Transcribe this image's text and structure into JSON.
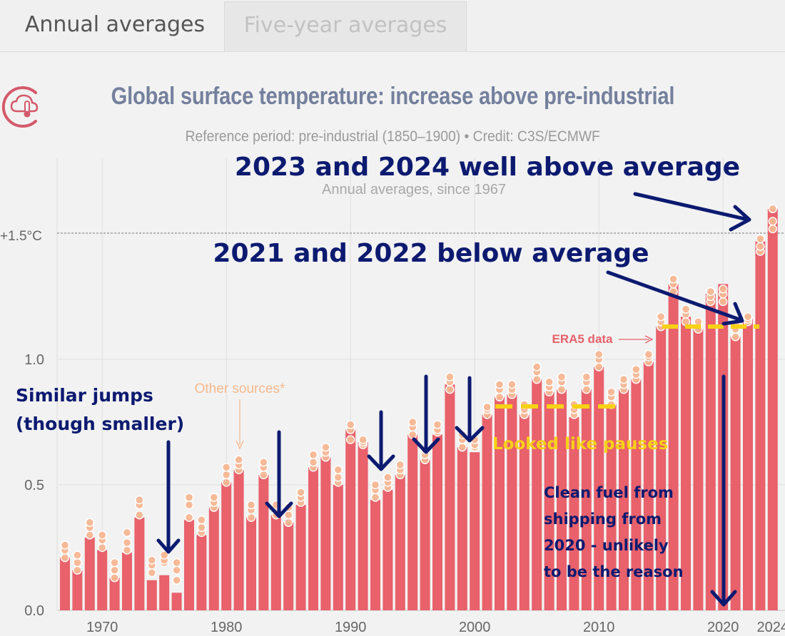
{
  "tabs": [
    {
      "label": "Annual averages"
    },
    {
      "label": "Five-year averages"
    }
  ],
  "colors": {
    "bar": "#e8616b",
    "dot": "#f8b894",
    "annotation": "#0c1a70",
    "highlight": "#f7d117"
  },
  "chart_data": {
    "type": "bar",
    "title": "Global surface temperature: increase above pre-industrial",
    "subtitle": "Reference period: pre-industrial (1850–1900) • Credit: C3S/ECMWF",
    "note": "Annual averages, since 1967",
    "reference_line": {
      "value": 1.5,
      "label": "+1.5°C"
    },
    "ylim": [
      0,
      1.8
    ],
    "yticks": [
      {
        "value": 0,
        "label": "0.0"
      },
      {
        "value": 0.5,
        "label": "0.5"
      },
      {
        "value": 1.0,
        "label": "1.0"
      }
    ],
    "xticks": [
      {
        "year": 1970,
        "label": "1970"
      },
      {
        "year": 1980,
        "label": "1980"
      },
      {
        "year": 1990,
        "label": "1990"
      },
      {
        "year": 2000,
        "label": "2000"
      },
      {
        "year": 2010,
        "label": "2010"
      },
      {
        "year": 2020,
        "label": "2020"
      },
      {
        "year": 2024,
        "label": "2024"
      }
    ],
    "x": [
      1967,
      1968,
      1969,
      1970,
      1971,
      1972,
      1973,
      1974,
      1975,
      1976,
      1977,
      1978,
      1979,
      1980,
      1981,
      1982,
      1983,
      1984,
      1985,
      1986,
      1987,
      1988,
      1989,
      1990,
      1991,
      1992,
      1993,
      1994,
      1995,
      1996,
      1997,
      1998,
      1999,
      2000,
      2001,
      2002,
      2003,
      2004,
      2005,
      2006,
      2007,
      2008,
      2009,
      2010,
      2011,
      2012,
      2013,
      2014,
      2015,
      2016,
      2017,
      2018,
      2019,
      2020,
      2021,
      2022,
      2023,
      2024
    ],
    "values": [
      0.21,
      0.16,
      0.29,
      0.24,
      0.13,
      0.23,
      0.37,
      0.12,
      0.14,
      0.07,
      0.36,
      0.3,
      0.41,
      0.51,
      0.56,
      0.37,
      0.54,
      0.38,
      0.35,
      0.42,
      0.57,
      0.61,
      0.5,
      0.72,
      0.67,
      0.44,
      0.48,
      0.54,
      0.7,
      0.6,
      0.7,
      0.9,
      0.65,
      0.63,
      0.78,
      0.85,
      0.86,
      0.78,
      0.92,
      0.87,
      0.88,
      0.77,
      0.88,
      0.97,
      0.82,
      0.88,
      0.92,
      0.99,
      1.13,
      1.3,
      1.17,
      1.12,
      1.26,
      1.3,
      1.09,
      1.16,
      1.47,
      1.6
    ],
    "dots": [
      [
        0.21,
        0.24,
        0.26
      ],
      [
        0.16,
        0.19,
        0.22
      ],
      [
        0.3,
        0.33,
        0.35
      ],
      [
        0.25,
        0.28,
        0.3
      ],
      [
        0.13,
        0.16,
        0.19
      ],
      [
        0.24,
        0.27,
        0.31
      ],
      [
        0.38,
        0.42,
        0.44
      ],
      [
        0.15,
        0.18,
        0.2
      ],
      [
        0.19,
        0.2,
        0.22
      ],
      [
        0.12,
        0.16,
        0.19
      ],
      [
        0.37,
        0.42,
        0.45
      ],
      [
        0.31,
        0.33,
        0.36
      ],
      [
        0.41,
        0.43,
        0.45
      ],
      [
        0.51,
        0.54,
        0.57
      ],
      [
        0.56,
        0.58,
        0.6
      ],
      [
        0.37,
        0.4,
        0.42
      ],
      [
        0.54,
        0.57,
        0.59
      ],
      [
        0.38,
        0.4,
        0.42
      ],
      [
        0.35,
        0.38,
        0.41
      ],
      [
        0.43,
        0.45,
        0.47
      ],
      [
        0.57,
        0.59,
        0.62
      ],
      [
        0.61,
        0.63,
        0.65
      ],
      [
        0.51,
        0.53,
        0.56
      ],
      [
        0.68,
        0.72,
        0.74
      ],
      [
        0.66,
        0.67,
        0.68
      ],
      [
        0.45,
        0.48,
        0.5
      ],
      [
        0.49,
        0.51,
        0.53
      ],
      [
        0.54,
        0.56,
        0.58
      ],
      [
        0.7,
        0.73,
        0.75
      ],
      [
        0.6,
        0.62,
        0.64
      ],
      [
        0.71,
        0.72,
        0.74
      ],
      [
        0.88,
        0.91,
        0.93
      ],
      [
        0.65,
        0.68,
        0.7
      ],
      [
        0.65,
        0.66,
        0.68
      ],
      [
        0.78,
        0.8,
        0.81
      ],
      [
        0.85,
        0.88,
        0.9
      ],
      [
        0.86,
        0.88,
        0.9
      ],
      [
        0.78,
        0.8,
        0.82
      ],
      [
        0.92,
        0.95,
        0.97
      ],
      [
        0.87,
        0.89,
        0.91
      ],
      [
        0.88,
        0.91,
        0.93
      ],
      [
        0.78,
        0.8,
        0.82
      ],
      [
        0.88,
        0.91,
        0.93
      ],
      [
        0.97,
        1.0,
        1.02
      ],
      [
        0.82,
        0.85,
        0.87
      ],
      [
        0.88,
        0.9,
        0.92
      ],
      [
        0.92,
        0.94,
        0.96
      ],
      [
        0.99,
        1.01,
        1.02
      ],
      [
        1.13,
        1.15,
        1.17
      ],
      [
        1.27,
        1.3,
        1.32
      ],
      [
        1.15,
        1.18,
        1.2
      ],
      [
        1.12,
        1.14,
        1.15
      ],
      [
        1.23,
        1.25,
        1.27
      ],
      [
        1.23,
        1.26,
        1.28
      ],
      [
        1.09,
        1.12,
        1.14
      ],
      [
        1.15,
        1.16,
        1.17
      ],
      [
        1.43,
        1.45,
        1.48
      ],
      [
        1.52,
        1.55,
        1.6
      ]
    ]
  },
  "labels": {
    "other_sources": "Other sources*",
    "era5": "ERA5 data"
  },
  "annotations": {
    "recent": "2023 and 2024 well above average",
    "below": "2021 and 2022 below average",
    "similar_1": "Similar jumps",
    "similar_2": "(though smaller)",
    "pauses": "Looked like pauses",
    "fuel_1": "Clean fuel from",
    "fuel_2": "shipping from",
    "fuel_3": "2020 - unlikely",
    "fuel_4": "to be the reason"
  }
}
